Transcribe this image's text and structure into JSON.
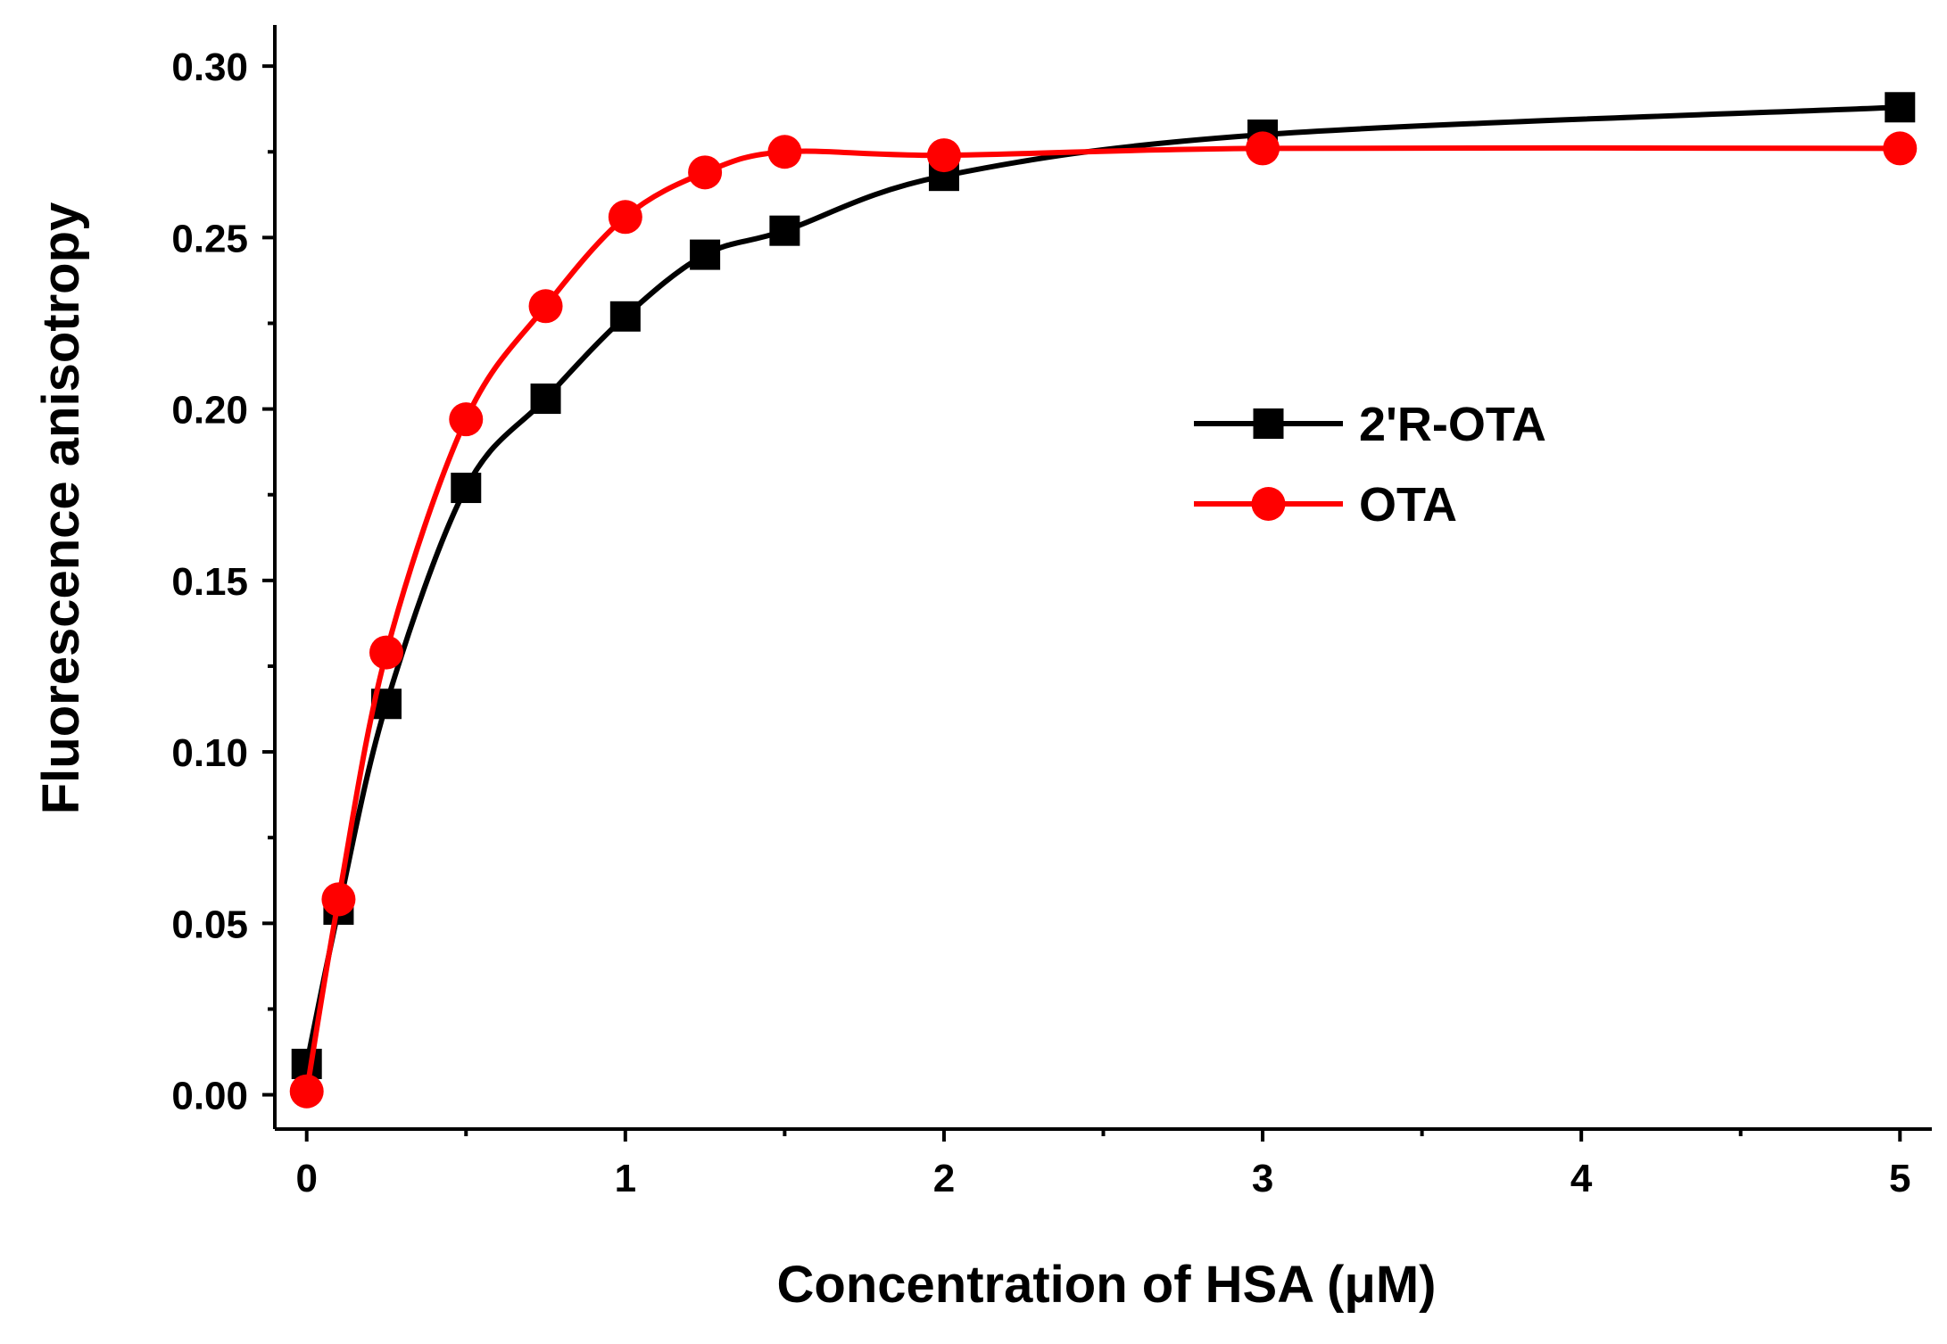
{
  "chart_data": {
    "type": "line",
    "xlabel": "Concentration of HSA  (μM)",
    "ylabel": "Fluorescence anisotropy",
    "xlim": [
      -0.1,
      5.1
    ],
    "ylim": [
      -0.01,
      0.312
    ],
    "x_ticks": [
      0,
      1,
      2,
      3,
      4,
      5
    ],
    "x_tick_labels": [
      "0",
      "1",
      "2",
      "3",
      "4",
      "5"
    ],
    "x_minor_ticks": [
      0.5,
      1.5,
      2.5,
      3.5,
      4.5
    ],
    "y_ticks": [
      0.0,
      0.05,
      0.1,
      0.15,
      0.2,
      0.25,
      0.3
    ],
    "y_tick_labels": [
      "0.00",
      "0.05",
      "0.10",
      "0.15",
      "0.20",
      "0.25",
      "0.30"
    ],
    "y_minor_ticks": [
      0.025,
      0.075,
      0.125,
      0.175,
      0.225,
      0.275
    ],
    "grid": false,
    "legend_position": "center-right",
    "series": [
      {
        "name": "2'R-OTA",
        "color": "#000000",
        "marker": "square",
        "x": [
          0,
          0.1,
          0.25,
          0.5,
          0.75,
          1.0,
          1.25,
          1.5,
          2,
          3,
          5
        ],
        "y": [
          0.009,
          0.054,
          0.114,
          0.177,
          0.203,
          0.227,
          0.245,
          0.252,
          0.268,
          0.28,
          0.288
        ]
      },
      {
        "name": "OTA",
        "color": "#ff0000",
        "marker": "circle",
        "x": [
          0,
          0.1,
          0.25,
          0.5,
          0.75,
          1.0,
          1.25,
          1.5,
          2,
          3,
          5
        ],
        "y": [
          0.001,
          0.057,
          0.129,
          0.197,
          0.23,
          0.256,
          0.269,
          0.275,
          0.274,
          0.276,
          0.276
        ]
      }
    ]
  }
}
